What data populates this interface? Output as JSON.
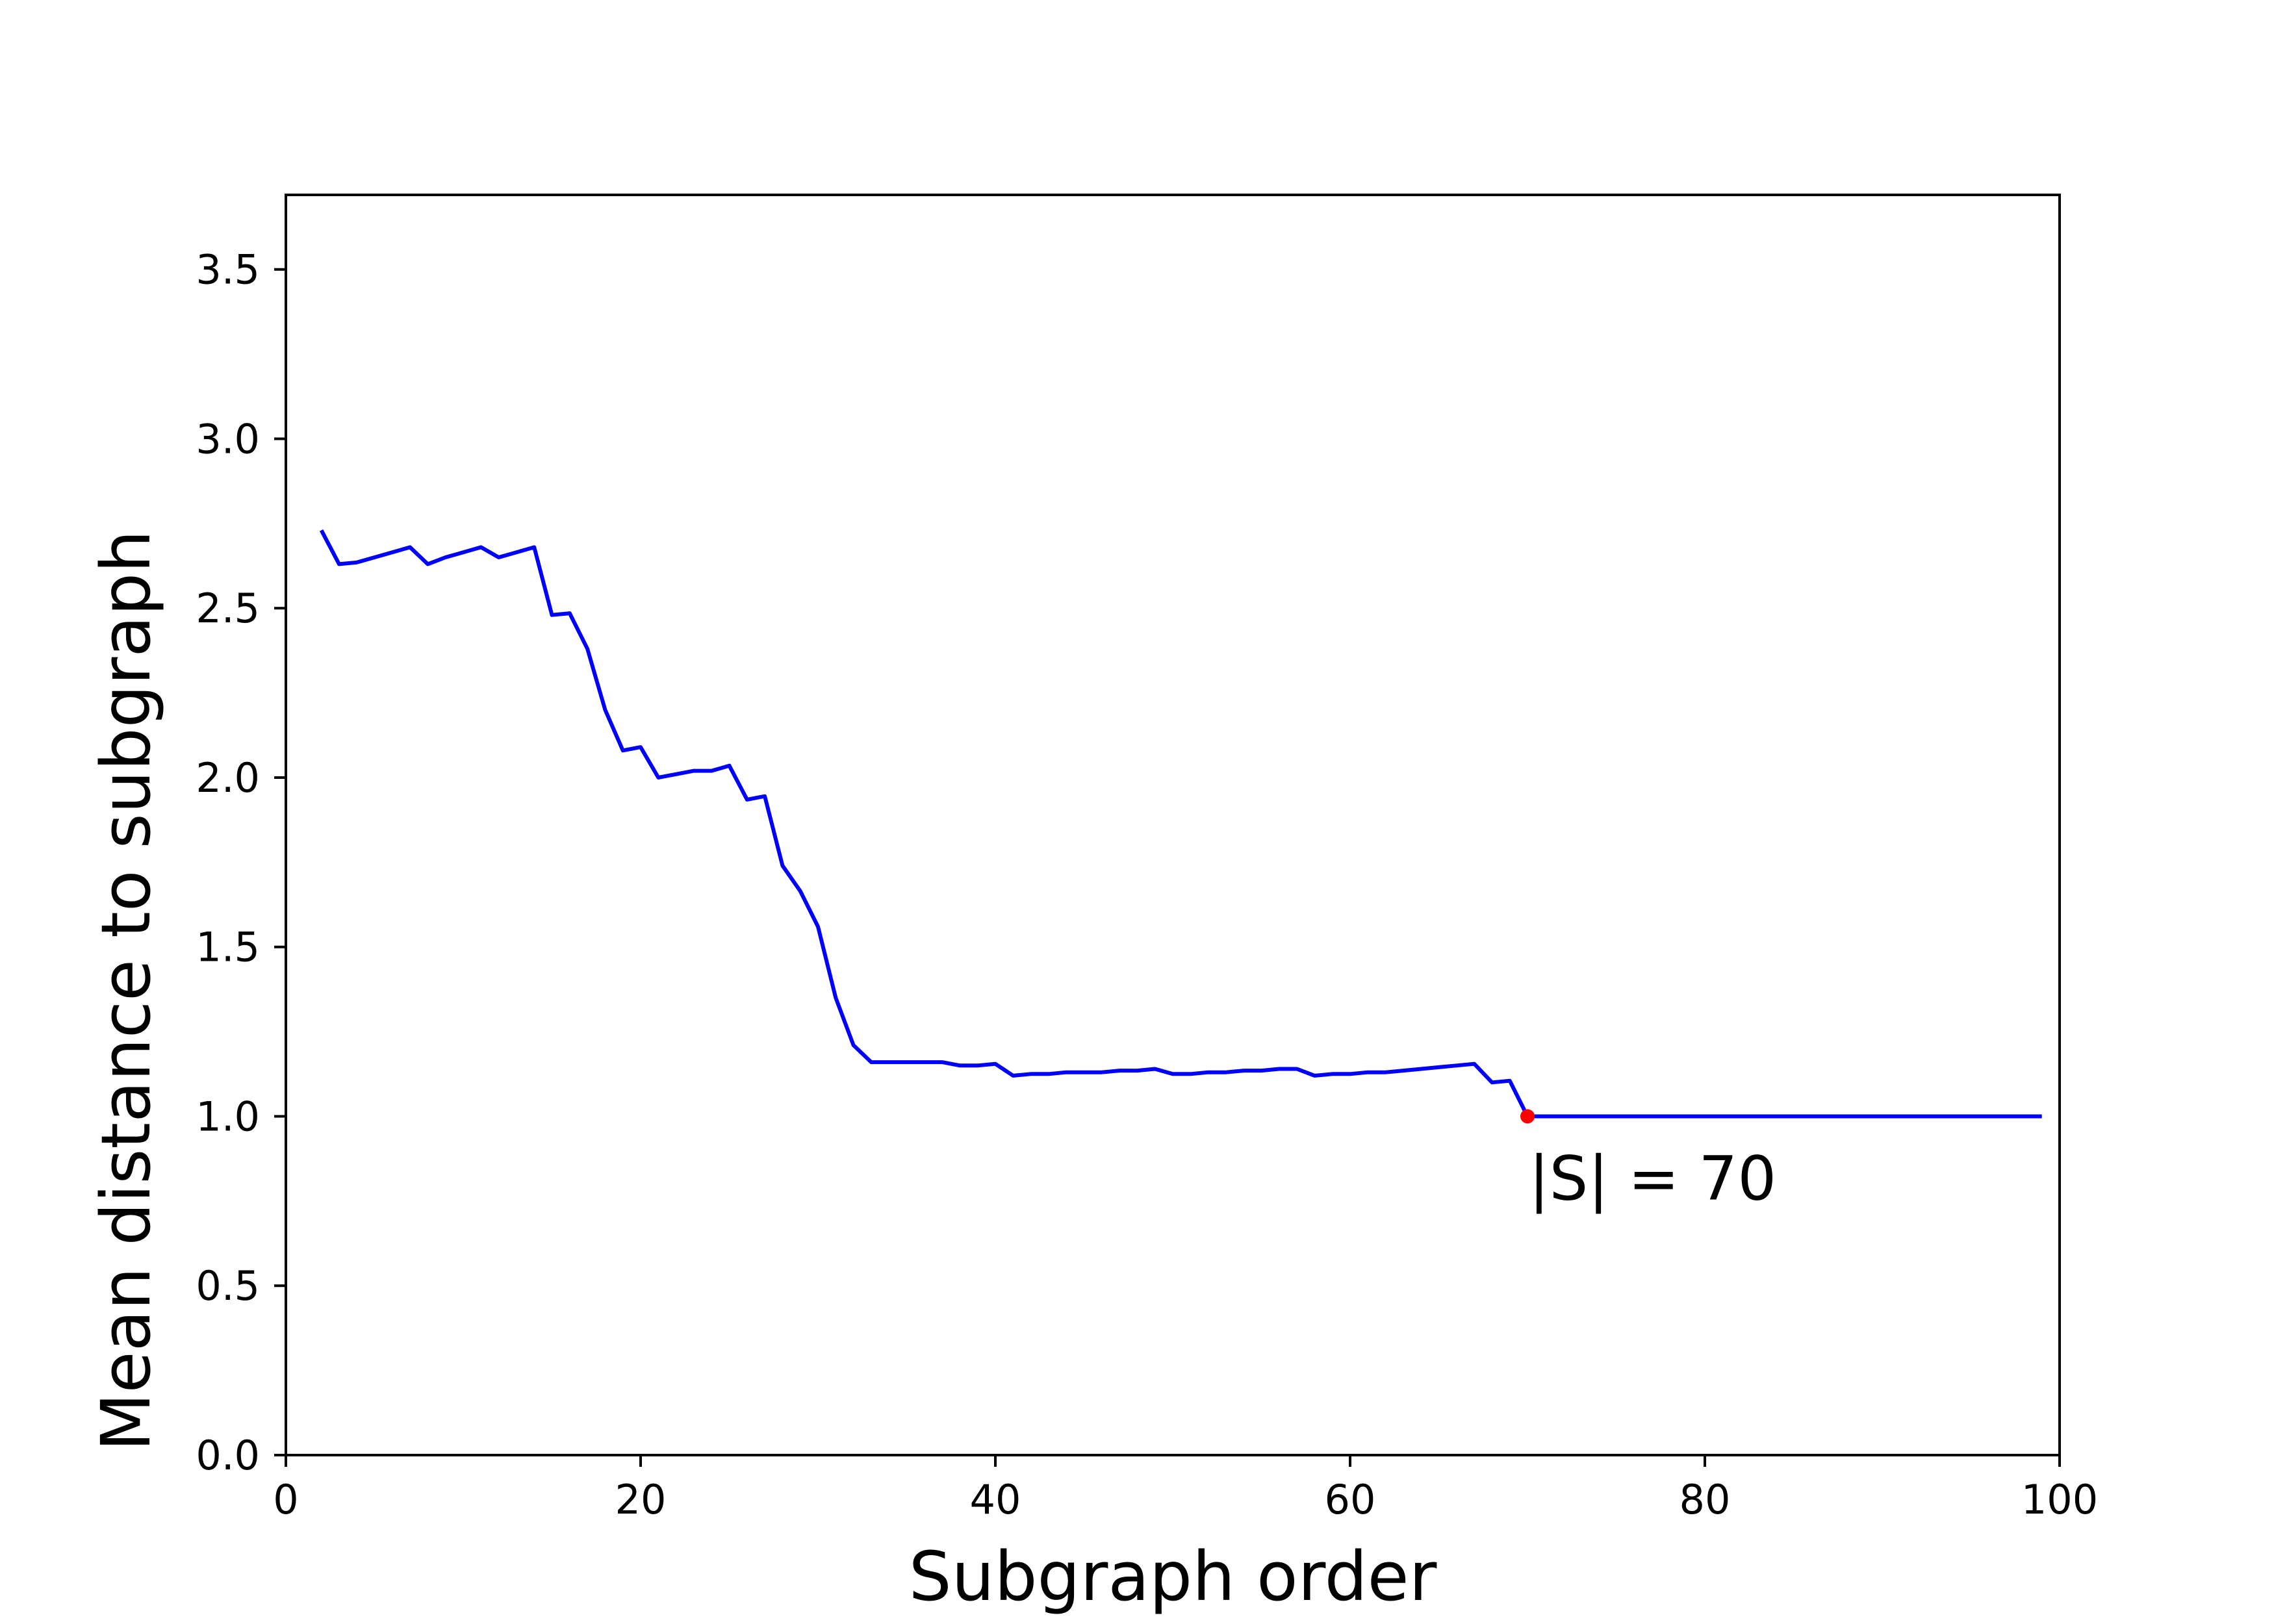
{
  "chart_data": {
    "type": "line",
    "title": "",
    "xlabel": "Subgraph order",
    "ylabel": "Mean distance to subgraph",
    "xlim": [
      0,
      100
    ],
    "ylim": [
      0,
      3.72
    ],
    "xticks": [
      0,
      20,
      40,
      60,
      80,
      100
    ],
    "xtick_labels": [
      "0",
      "20",
      "40",
      "60",
      "80",
      "100"
    ],
    "yticks": [
      0,
      0.5,
      1,
      1.5,
      2,
      2.5,
      3,
      3.5
    ],
    "ytick_labels": [
      "0.0",
      "0.5",
      "1.0",
      "1.5",
      "2.0",
      "2.5",
      "3.0",
      "3.5"
    ],
    "grid": false,
    "series": [
      {
        "color": "#0000ff",
        "x": [
          2,
          3,
          4,
          5,
          6,
          7,
          8,
          9,
          10,
          11,
          12,
          13,
          14,
          15,
          16,
          17,
          18,
          19,
          20,
          21,
          22,
          23,
          24,
          25,
          26,
          27,
          28,
          29,
          30,
          31,
          32,
          33,
          34,
          35,
          36,
          37,
          38,
          39,
          40,
          41,
          42,
          43,
          44,
          45,
          46,
          47,
          48,
          49,
          50,
          51,
          52,
          53,
          54,
          55,
          56,
          57,
          58,
          59,
          60,
          61,
          62,
          63,
          64,
          65,
          66,
          67,
          68,
          69,
          70,
          71,
          72,
          73,
          74,
          75,
          76,
          77,
          78,
          79,
          80,
          81,
          82,
          83,
          84,
          85,
          86,
          87,
          88,
          89,
          90,
          91,
          92,
          93,
          94,
          95,
          96,
          97,
          98,
          99
        ],
        "y": [
          2.73,
          2.63,
          2.635,
          2.65,
          2.665,
          2.68,
          2.63,
          2.65,
          2.665,
          2.68,
          2.65,
          2.665,
          2.68,
          2.48,
          2.485,
          2.38,
          2.2,
          2.08,
          2.09,
          2.0,
          2.01,
          2.02,
          2.02,
          2.035,
          1.935,
          1.945,
          1.74,
          1.665,
          1.56,
          1.35,
          1.21,
          1.16,
          1.16,
          1.16,
          1.16,
          1.16,
          1.15,
          1.15,
          1.155,
          1.12,
          1.125,
          1.125,
          1.13,
          1.13,
          1.13,
          1.135,
          1.135,
          1.14,
          1.125,
          1.125,
          1.13,
          1.13,
          1.135,
          1.135,
          1.14,
          1.14,
          1.12,
          1.125,
          1.125,
          1.13,
          1.13,
          1.135,
          1.14,
          1.145,
          1.15,
          1.155,
          1.1,
          1.105,
          1.0,
          1.0,
          1.0,
          1.0,
          1.0,
          1.0,
          1.0,
          1.0,
          1.0,
          1.0,
          1.0,
          1.0,
          1.0,
          1.0,
          1.0,
          1.0,
          1.0,
          1.0,
          1.0,
          1.0,
          1.0,
          1.0,
          1.0,
          1.0,
          1.0,
          1.0,
          1.0,
          1.0,
          1.0,
          1.0
        ]
      }
    ],
    "highlight_point": {
      "x": 70,
      "y": 1.0,
      "color": "#ff0000"
    },
    "annotation": {
      "text": "|S| = 70",
      "x": 70,
      "y": 0.82
    }
  }
}
